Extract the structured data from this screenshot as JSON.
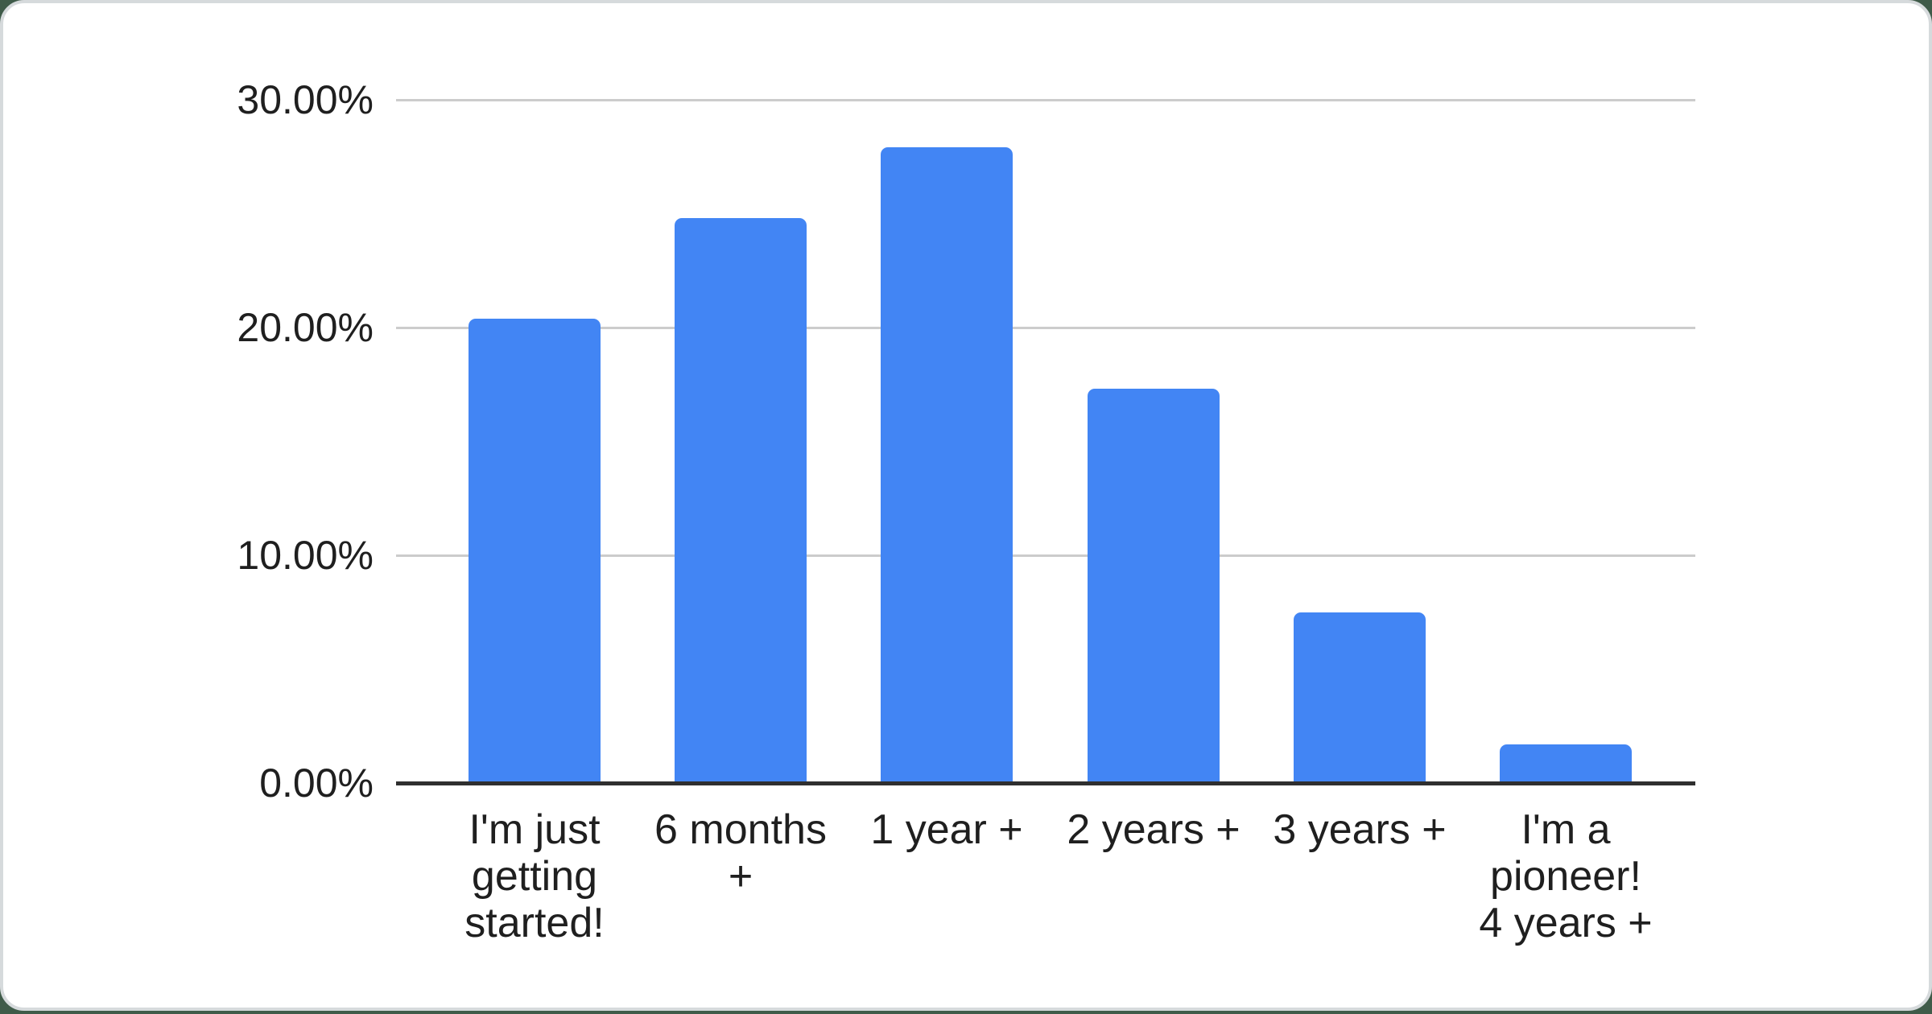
{
  "page": {
    "background_color": "#3f5b49",
    "card_background": "#ffffff",
    "card_border_color": "#d6dadc"
  },
  "chart_data": {
    "type": "bar",
    "title": "",
    "xlabel": "",
    "ylabel": "",
    "legend_position": "none",
    "grid": true,
    "ylim": [
      0,
      30
    ],
    "categories": [
      "I'm just getting started!",
      "6 months +",
      "1 year +",
      "2 years +",
      "3 years +",
      "I'm a pioneer! 4 years +"
    ],
    "category_display_lines": [
      [
        "I'm just",
        "getting",
        "started!"
      ],
      [
        "6 months",
        "+"
      ],
      [
        "1 year +"
      ],
      [
        "2 years +"
      ],
      [
        "3 years +"
      ],
      [
        "I'm a",
        "pioneer!",
        "4 years +"
      ]
    ],
    "values": [
      20.4,
      24.8,
      27.9,
      17.3,
      7.5,
      1.7
    ],
    "value_unit": "%",
    "yticks": [
      {
        "value": 0,
        "label": "0.00%"
      },
      {
        "value": 10,
        "label": "10.00%"
      },
      {
        "value": 20,
        "label": "20.00%"
      },
      {
        "value": 30,
        "label": "30.00%"
      }
    ],
    "colors": {
      "bar": "#4285f4",
      "gridline": "#cccccc",
      "axis_line": "#2f2f2f",
      "tick_text": "#1f1f1f"
    }
  }
}
